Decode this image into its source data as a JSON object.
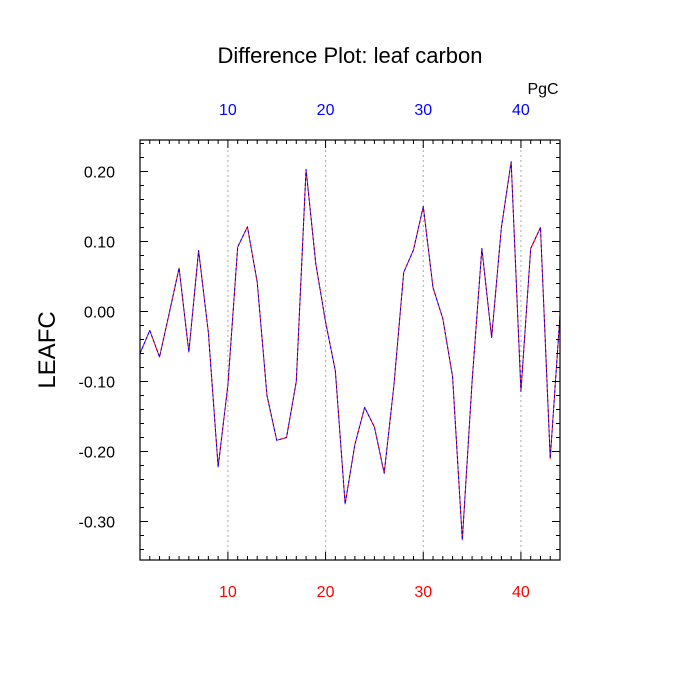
{
  "chart_data": {
    "type": "line",
    "title": "Difference Plot: leaf carbon",
    "ylabel": "LEAFC",
    "top_axis_unit": "PgC",
    "xlim": [
      1,
      44
    ],
    "ylim": [
      -0.355,
      0.245
    ],
    "x_ticks": [
      10,
      20,
      30,
      40
    ],
    "x_tick_labels": [
      "10",
      "20",
      "30",
      "40"
    ],
    "top_x_tick_labels": [
      "10",
      "20",
      "30",
      "40"
    ],
    "y_ticks": [
      0.2,
      0.1,
      0.0,
      -0.1,
      -0.2,
      -0.3
    ],
    "y_tick_labels": [
      "0.20",
      "0.10",
      "0.00",
      "-0.10",
      "-0.20",
      "-0.30"
    ],
    "vertical_gridlines": true,
    "colors": {
      "bottom_tick_labels": "#ff0000",
      "top_tick_labels": "#0000ff",
      "series_stroke_a": "#ff0000",
      "series_stroke_b": "#0000ff",
      "gridline": "#aaaaaa",
      "axes": "#000000"
    },
    "x": [
      1,
      2,
      3,
      4,
      5,
      6,
      7,
      8,
      9,
      10,
      11,
      12,
      13,
      14,
      15,
      16,
      17,
      18,
      19,
      20,
      21,
      22,
      23,
      24,
      25,
      26,
      27,
      28,
      29,
      30,
      31,
      32,
      33,
      34,
      35,
      36,
      37,
      38,
      39,
      40,
      41,
      42,
      43,
      44
    ],
    "series": [
      {
        "values": [
          -0.06,
          -0.027,
          -0.065,
          -0.002,
          0.062,
          -0.058,
          0.087,
          -0.03,
          -0.222,
          -0.105,
          0.092,
          0.121,
          0.042,
          -0.12,
          -0.184,
          -0.18,
          -0.1,
          0.203,
          0.068,
          -0.015,
          -0.085,
          -0.275,
          -0.19,
          -0.137,
          -0.165,
          -0.231,
          -0.105,
          0.056,
          0.088,
          0.15,
          0.034,
          -0.01,
          -0.093,
          -0.326,
          -0.1,
          0.09,
          -0.037,
          0.12,
          0.214,
          -0.114,
          0.09,
          0.12,
          -0.21,
          -0.005
        ]
      }
    ]
  }
}
